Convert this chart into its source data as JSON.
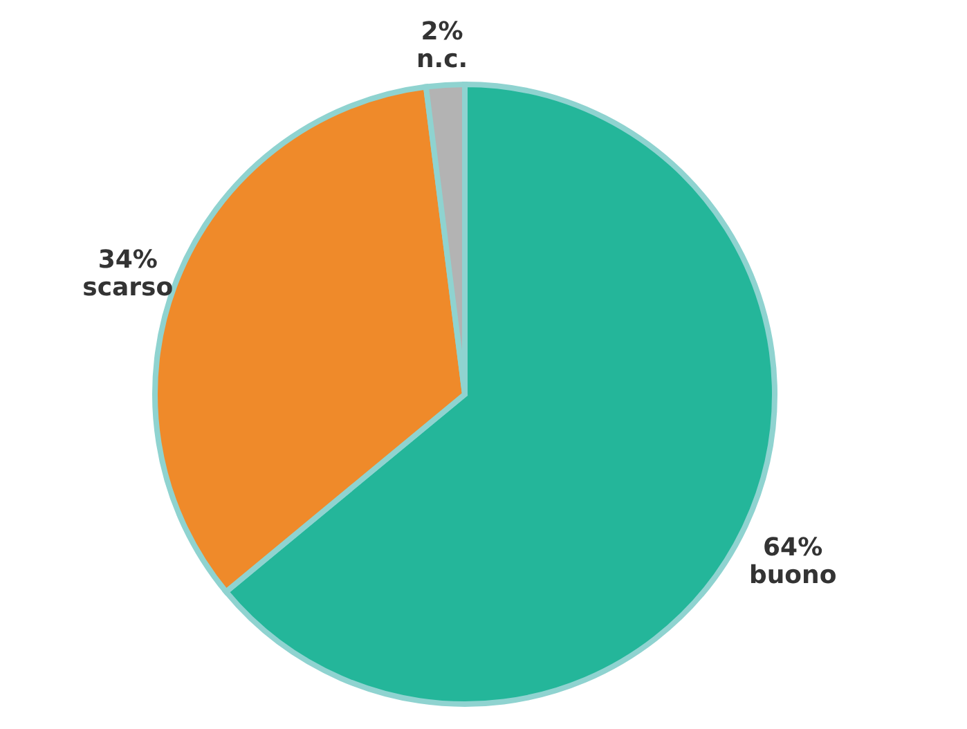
{
  "chart_data": {
    "type": "pie",
    "categories": [
      "buono",
      "scarso",
      "n.c."
    ],
    "values": [
      64,
      34,
      2
    ],
    "colors": [
      "#24b69a",
      "#ef8a2a",
      "#b3b3b3"
    ],
    "value_labels": [
      "64%",
      "34%",
      "2%"
    ]
  }
}
